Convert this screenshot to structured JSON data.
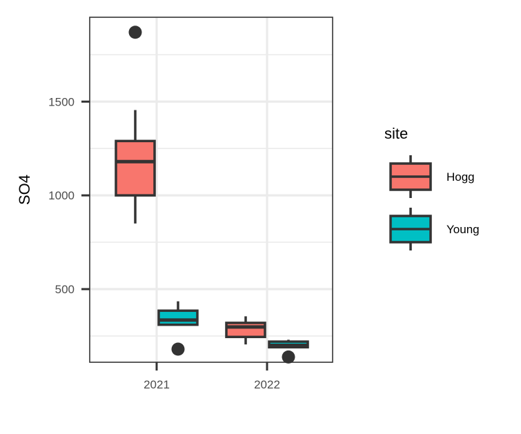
{
  "chart_data": {
    "type": "boxplot",
    "title": "",
    "xlabel": "",
    "ylabel": "SO4",
    "categories": [
      "2021",
      "2022"
    ],
    "ylim": [
      110,
      1950
    ],
    "yticks": [
      500,
      1000,
      1500
    ],
    "grid": true,
    "legend": {
      "title": "site",
      "position": "right"
    },
    "series": [
      {
        "name": "Hogg",
        "color": "#F8766D",
        "boxes": [
          {
            "category": "2021",
            "whisker_low": 850,
            "q1": 1000,
            "median": 1180,
            "q3": 1290,
            "whisker_high": 1455,
            "outliers": [
              1870
            ]
          },
          {
            "category": "2022",
            "whisker_low": 205,
            "q1": 245,
            "median": 298,
            "q3": 320,
            "whisker_high": 355,
            "outliers": []
          }
        ]
      },
      {
        "name": "Young",
        "color": "#00BFC4",
        "boxes": [
          {
            "category": "2021",
            "whisker_low": 310,
            "q1": 310,
            "median": 335,
            "q3": 385,
            "whisker_high": 435,
            "outliers": [
              180
            ]
          },
          {
            "category": "2022",
            "whisker_low": 190,
            "q1": 190,
            "median": 200,
            "q3": 220,
            "whisker_high": 230,
            "outliers": [
              138
            ]
          }
        ]
      }
    ]
  }
}
